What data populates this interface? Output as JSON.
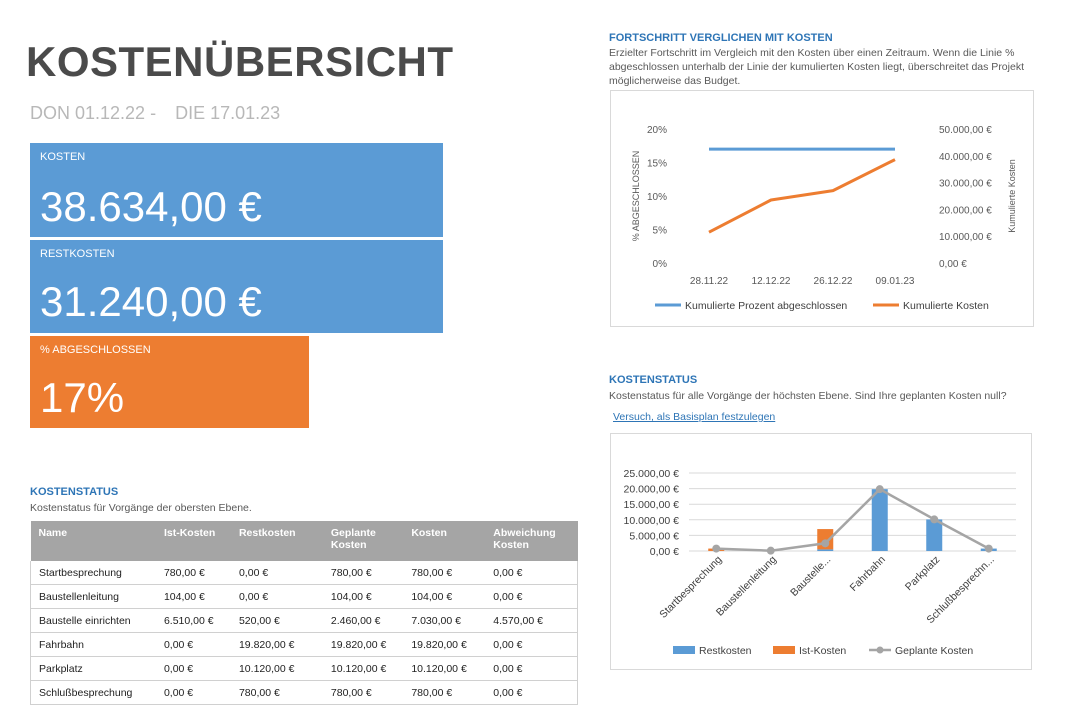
{
  "header": {
    "title": "KOSTENÜBERSICHT",
    "date_start": "DON 01.12.22 -",
    "date_end": "DIE 17.01.23"
  },
  "tiles": {
    "kosten_label": "KOSTEN",
    "kosten_value": "38.634,00 €",
    "restkosten_label": "RESTKOSTEN",
    "restkosten_value": "31.240,00 €",
    "abgeschlossen_label": "% ABGESCHLOSSEN",
    "abgeschlossen_value": "17%",
    "abgeschlossen_fraction": 0.17
  },
  "table_section": {
    "title": "KOSTENSTATUS",
    "subtitle": "Kostenstatus für Vorgänge der obersten Ebene.",
    "columns": [
      "Name",
      "Ist-Kosten",
      "Restkosten",
      "Geplante Kosten",
      "Kosten",
      "Abweichung Kosten"
    ],
    "rows": [
      [
        "Startbesprechung",
        "780,00 €",
        "0,00 €",
        "780,00 €",
        "780,00 €",
        "0,00 €"
      ],
      [
        "Baustellenleitung",
        "104,00 €",
        "0,00 €",
        "104,00 €",
        "104,00 €",
        "0,00 €"
      ],
      [
        "Baustelle einrichten",
        "6.510,00 €",
        "520,00 €",
        "2.460,00 €",
        "7.030,00 €",
        "4.570,00 €"
      ],
      [
        "Fahrbahn",
        "0,00 €",
        "19.820,00 €",
        "19.820,00 €",
        "19.820,00 €",
        "0,00 €"
      ],
      [
        "Parkplatz",
        "0,00 €",
        "10.120,00 €",
        "10.120,00 €",
        "10.120,00 €",
        "0,00 €"
      ],
      [
        "Schlußbesprechung",
        "0,00 €",
        "780,00 €",
        "780,00 €",
        "780,00 €",
        "0,00 €"
      ]
    ]
  },
  "progress_section": {
    "title": "FORTSCHRITT VERGLICHEN MIT KOSTEN",
    "subtitle_1": "Erzielter Fortschritt im Vergleich mit den Kosten über einen Zeitraum. Wenn die Linie %",
    "subtitle_2": "abgeschlossen unterhalb der Linie der kumulierten Kosten liegt, überschreitet das Projekt",
    "subtitle_3": "möglicherweise das Budget."
  },
  "status_section": {
    "title": "KOSTENSTATUS",
    "subtitle": "Kostenstatus für alle Vorgänge der höchsten Ebene. Sind Ihre geplanten Kosten null?",
    "link": "Versuch, als Basisplan festzulegen"
  },
  "colors": {
    "blue": "#5b9bd5",
    "orange": "#ed7d31",
    "gray": "#a5a5a5",
    "accent_text": "#2e75b6"
  },
  "chart_data": [
    {
      "type": "line",
      "categories": [
        "28.11.22",
        "12.12.22",
        "26.12.22",
        "09.01.23"
      ],
      "y_left_label": "% ABGESCHLOSSEN",
      "y_right_label": "Kumulierte Kosten",
      "y_left_ticks": [
        "20%",
        "15%",
        "10%",
        "5%",
        "0%"
      ],
      "y_right_ticks": [
        "50.000,00 €",
        "40.000,00 €",
        "30.000,00 €",
        "20.000,00 €",
        "10.000,00 €",
        "0,00 €"
      ],
      "ylim_left": [
        0,
        20
      ],
      "ylim_right": [
        0,
        50000
      ],
      "series": [
        {
          "name": "Kumulierte Prozent abgeschlossen",
          "axis": "left",
          "values": [
            17,
            17,
            17,
            17
          ],
          "color": "#5b9bd5"
        },
        {
          "name": "Kumulierte Kosten",
          "axis": "right",
          "values": [
            11500,
            23500,
            27000,
            38600
          ],
          "color": "#ed7d31"
        }
      ],
      "legend": "bottom",
      "grid": false
    },
    {
      "type": "bar",
      "categories": [
        "Startbesprechung",
        "Baustellenleitung",
        "Baustelle...",
        "Fahrbahn",
        "Parkplatz",
        "Schlußbesprechn..."
      ],
      "y_ticks": [
        "25.000,00 €",
        "20.000,00 €",
        "15.000,00 €",
        "10.000,00 €",
        "5.000,00 €",
        "0,00 €"
      ],
      "ylim": [
        0,
        25000
      ],
      "series": [
        {
          "name": "Restkosten",
          "kind": "bar",
          "values": [
            0,
            0,
            520,
            19820,
            10120,
            780
          ],
          "color": "#5b9bd5"
        },
        {
          "name": "Ist-Kosten",
          "kind": "bar",
          "values": [
            780,
            104,
            6510,
            0,
            0,
            0
          ],
          "color": "#ed7d31"
        },
        {
          "name": "Geplante Kosten",
          "kind": "line",
          "values": [
            780,
            104,
            2460,
            19820,
            10120,
            780
          ],
          "color": "#a5a5a5"
        }
      ],
      "legend": "bottom",
      "grid": true
    }
  ]
}
